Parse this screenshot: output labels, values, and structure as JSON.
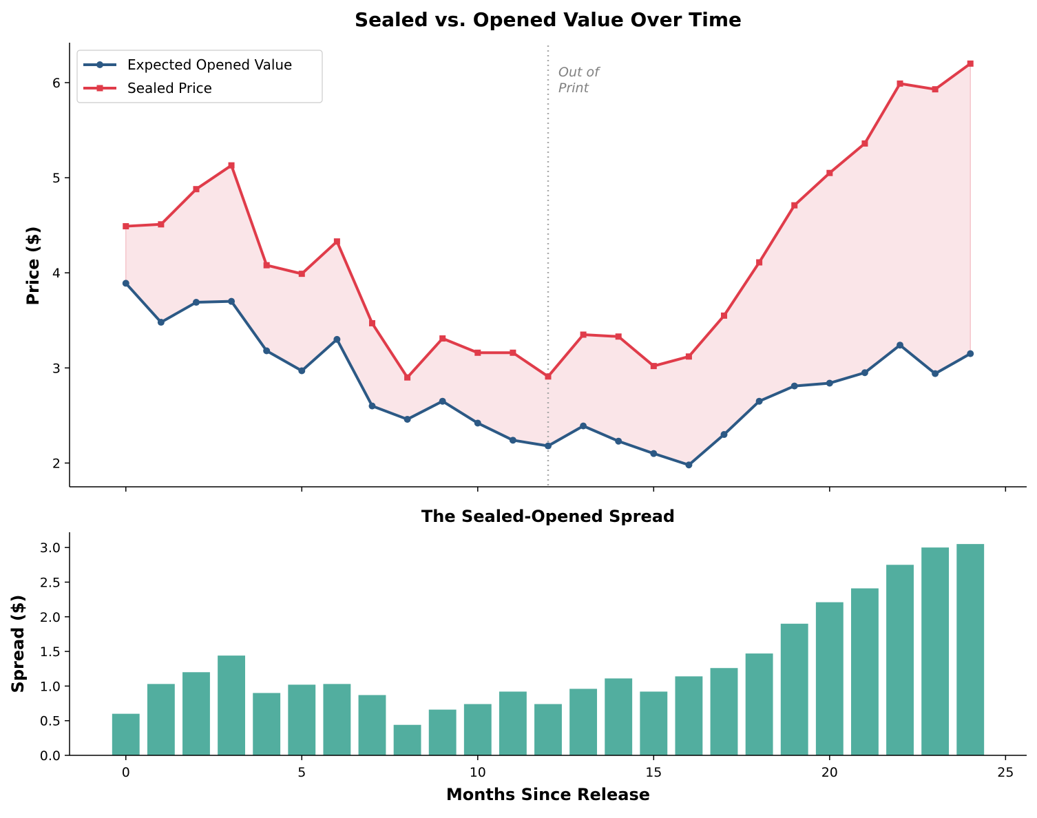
{
  "chart_data": [
    {
      "type": "line",
      "title": "Sealed vs. Opened Value Over Time",
      "xlabel": "",
      "ylabel": "Price ($)",
      "xlim": [
        -1.6,
        25.6
      ],
      "ylim": [
        1.75,
        6.42
      ],
      "x": [
        0,
        1,
        2,
        3,
        4,
        5,
        6,
        7,
        8,
        9,
        10,
        11,
        12,
        13,
        14,
        15,
        16,
        17,
        18,
        19,
        20,
        21,
        22,
        23,
        24
      ],
      "x_ticks": [
        0,
        5,
        10,
        15,
        20,
        25
      ],
      "y_ticks": [
        2,
        3,
        4,
        5,
        6
      ],
      "legend": "top-left",
      "fill_between": {
        "color": "#f5c6cb",
        "between": [
          "Expected Opened Value",
          "Sealed Price"
        ]
      },
      "series": [
        {
          "name": "Expected Opened Value",
          "color": "#2c5985",
          "marker": "circle",
          "values": [
            3.89,
            3.48,
            3.69,
            3.7,
            3.18,
            2.97,
            3.3,
            2.6,
            2.46,
            2.65,
            2.42,
            2.24,
            2.18,
            2.39,
            2.23,
            2.1,
            1.98,
            2.3,
            2.65,
            2.81,
            2.84,
            2.95,
            3.24,
            2.94,
            3.15
          ]
        },
        {
          "name": "Sealed Price",
          "color": "#e03c4a",
          "marker": "square",
          "values": [
            4.49,
            4.51,
            4.88,
            5.13,
            4.08,
            3.99,
            4.33,
            3.47,
            2.9,
            3.31,
            3.16,
            3.16,
            2.91,
            3.35,
            3.33,
            3.02,
            3.12,
            3.55,
            4.11,
            4.71,
            5.05,
            5.36,
            5.99,
            5.93,
            6.2
          ]
        }
      ],
      "annotations": [
        {
          "x": 12,
          "text_lines": [
            "Out of",
            "Print"
          ],
          "style": "dotted vertical line"
        }
      ]
    },
    {
      "type": "bar",
      "title": "The Sealed-Opened Spread",
      "xlabel": "Months Since Release",
      "ylabel": "Spread ($)",
      "xlim": [
        -1.6,
        25.6
      ],
      "ylim": [
        0,
        3.22
      ],
      "x_ticks": [
        0,
        5,
        10,
        15,
        20,
        25
      ],
      "y_ticks": [
        "0.0",
        "0.5",
        "1.0",
        "1.5",
        "2.0",
        "2.5",
        "3.0"
      ],
      "color": "#52ae9f",
      "categories": [
        0,
        1,
        2,
        3,
        4,
        5,
        6,
        7,
        8,
        9,
        10,
        11,
        12,
        13,
        14,
        15,
        16,
        17,
        18,
        19,
        20,
        21,
        22,
        23,
        24
      ],
      "values": [
        0.6,
        1.03,
        1.2,
        1.44,
        0.9,
        1.02,
        1.03,
        0.87,
        0.44,
        0.66,
        0.74,
        0.92,
        0.74,
        0.96,
        1.11,
        0.92,
        1.14,
        1.26,
        1.47,
        1.9,
        2.21,
        2.41,
        2.75,
        3.0,
        3.05
      ]
    }
  ]
}
